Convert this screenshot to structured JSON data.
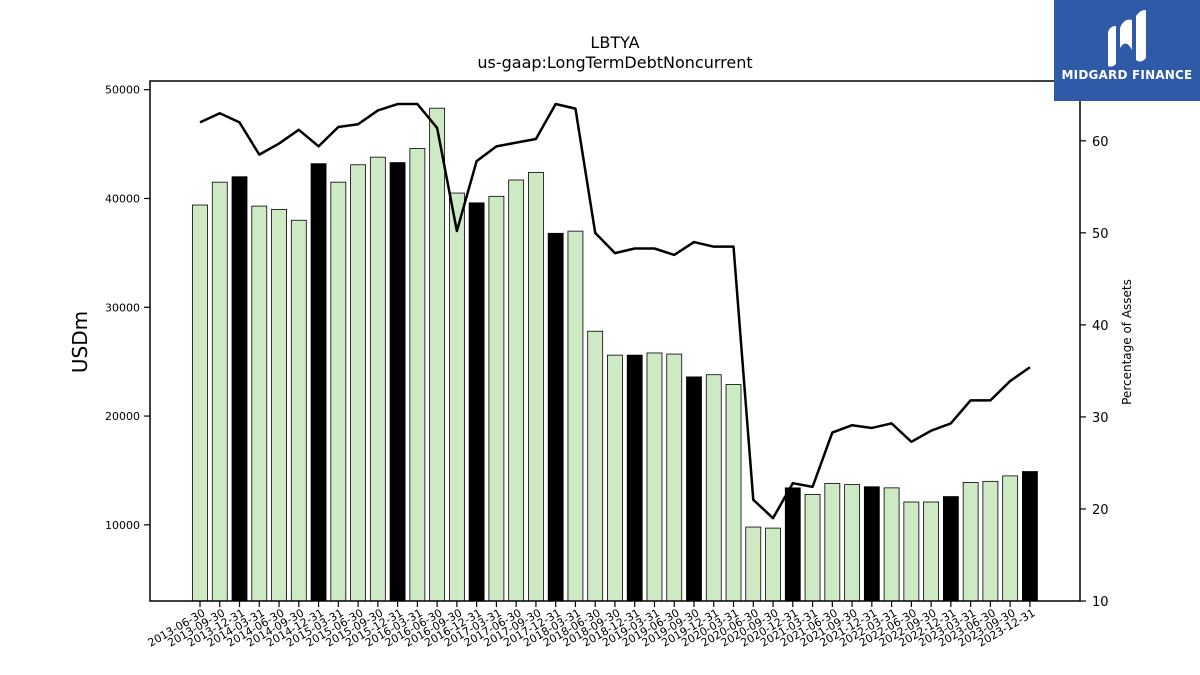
{
  "brand": {
    "name": "MIDGARD FINANCE",
    "icon": "midgard-logo-icon"
  },
  "colors": {
    "bar_light": "#cdeac5",
    "bar_dark": "#000000",
    "line": "#000000",
    "brand_bg": "#2f5aa8"
  },
  "chart_data": {
    "type": "bar",
    "title": "LBTYA",
    "subtitle": "us-gaap:LongTermDebtNoncurrent",
    "ylabel": "USDm",
    "y2label": "Percentage of Assets",
    "ylim": [
      3000,
      50800
    ],
    "y2lim": [
      10,
      66.5
    ],
    "yticks": [
      10000,
      20000,
      30000,
      40000,
      50000
    ],
    "y2ticks": [
      10,
      20,
      30,
      40,
      50,
      60
    ],
    "categories": [
      "2013-06-30",
      "2013-09-30",
      "2013-12-31",
      "2014-03-31",
      "2014-06-30",
      "2014-09-30",
      "2014-12-31",
      "2015-03-31",
      "2015-06-30",
      "2015-09-30",
      "2015-12-31",
      "2016-03-31",
      "2016-06-30",
      "2016-09-30",
      "2016-12-31",
      "2017-03-31",
      "2017-06-30",
      "2017-09-30",
      "2017-12-31",
      "2018-03-31",
      "2018-06-30",
      "2018-09-30",
      "2018-12-31",
      "2019-03-31",
      "2019-06-30",
      "2019-09-30",
      "2019-12-31",
      "2020-03-31",
      "2020-06-30",
      "2020-09-30",
      "2020-12-31",
      "2021-03-31",
      "2021-06-30",
      "2021-09-30",
      "2021-12-31",
      "2022-03-31",
      "2022-06-30",
      "2022-09-30",
      "2022-12-31",
      "2023-03-31",
      "2023-06-30",
      "2023-09-30",
      "2023-12-31"
    ],
    "series": [
      {
        "type": "bar",
        "values": [
          39400,
          41500,
          42000,
          39300,
          39000,
          38000,
          43200,
          41500,
          43100,
          43800,
          43300,
          44600,
          48300,
          40500,
          39600,
          40200,
          41700,
          42400,
          36800,
          37000,
          27800,
          25600,
          25600,
          25800,
          25700,
          23600,
          23800,
          22900,
          9800,
          9700,
          13400,
          12800,
          13800,
          13700,
          13500,
          13400,
          12100,
          12100,
          12600,
          13900,
          14000,
          14500,
          14900
        ]
      },
      {
        "type": "line",
        "axis": "right",
        "values": [
          62,
          63,
          62,
          58.5,
          59.7,
          61.2,
          59.4,
          61.5,
          61.8,
          63.3,
          64,
          64,
          61.4,
          50.2,
          57.8,
          59.4,
          59.8,
          60.2,
          64,
          63.5,
          50,
          47.8,
          48.3,
          48.3,
          47.6,
          49,
          48.5,
          48.5,
          21,
          19,
          22.8,
          22.4,
          28.3,
          29.1,
          28.8,
          29.3,
          27.3,
          28.5,
          29.3,
          31.8,
          31.8,
          33.9,
          35.4
        ]
      }
    ],
    "dark_indices": [
      2,
      6,
      10,
      14,
      18,
      22,
      25,
      30,
      34,
      38,
      42
    ]
  }
}
